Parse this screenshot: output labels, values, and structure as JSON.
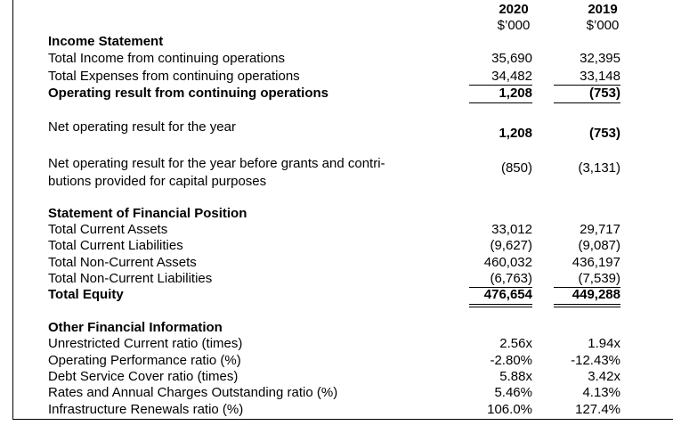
{
  "header": {
    "columns": [
      {
        "year": "2020",
        "unit": "$’000"
      },
      {
        "year": "2019",
        "unit": "$’000"
      }
    ]
  },
  "rows": [
    {
      "label": "Income Statement"
    },
    {
      "label": "Total Income from continuing operations",
      "values": [
        "35,690",
        "32,395"
      ]
    },
    {
      "label": "Total Expenses from continuing operations",
      "values": [
        "34,482",
        "33,148"
      ]
    },
    {
      "label": "Operating result from continuing operations",
      "values": [
        "1,208",
        "(753)"
      ]
    },
    {
      "label": "Net operating result for the year",
      "values": [
        "1,208",
        "(753)"
      ]
    },
    {
      "label_lines": [
        "Net operating result for the year before grants and contri-",
        "butions provided for capital purposes"
      ],
      "values": [
        "(850)",
        "(3,131)"
      ]
    },
    {
      "label": "Statement of Financial Position"
    },
    {
      "label": "Total Current Assets",
      "values": [
        "33,012",
        "29,717"
      ]
    },
    {
      "label": "Total Current Liabilities",
      "values": [
        "(9,627)",
        "(9,087)"
      ]
    },
    {
      "label": "Total Non-Current Assets",
      "values": [
        "460,032",
        "436,197"
      ]
    },
    {
      "label": "Total Non-Current Liabilities",
      "values": [
        "(6,763)",
        "(7,539)"
      ]
    },
    {
      "label": "Total Equity",
      "values": [
        "476,654",
        "449,288"
      ]
    },
    {
      "label": "Other Financial Information"
    },
    {
      "label": "Unrestricted Current ratio (times)",
      "values": [
        "2.56x",
        "1.94x"
      ]
    },
    {
      "label": "Operating Performance ratio (%)",
      "values": [
        "-2.80%",
        "-12.43%"
      ]
    },
    {
      "label": "Debt Service Cover ratio (times)",
      "values": [
        "5.88x",
        "3.42x"
      ]
    },
    {
      "label": "Rates and Annual Charges Outstanding ratio (%)",
      "values": [
        "5.46%",
        "4.13%"
      ]
    },
    {
      "label": "Infrastructure Renewals ratio (%)",
      "values": [
        "106.0%",
        "127.4%"
      ]
    }
  ]
}
